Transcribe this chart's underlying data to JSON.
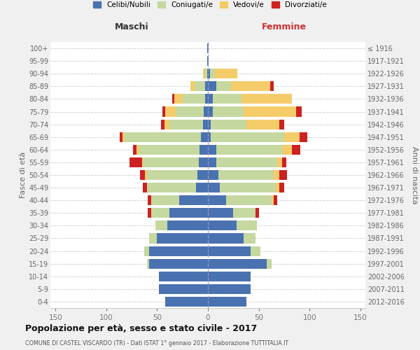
{
  "age_groups": [
    "0-4",
    "5-9",
    "10-14",
    "15-19",
    "20-24",
    "25-29",
    "30-34",
    "35-39",
    "40-44",
    "45-49",
    "50-54",
    "55-59",
    "60-64",
    "65-69",
    "70-74",
    "75-79",
    "80-84",
    "85-89",
    "90-94",
    "95-99",
    "100+"
  ],
  "birth_years": [
    "2012-2016",
    "2007-2011",
    "2002-2006",
    "1997-2001",
    "1992-1996",
    "1987-1991",
    "1982-1986",
    "1977-1981",
    "1972-1976",
    "1967-1971",
    "1962-1966",
    "1957-1961",
    "1952-1956",
    "1947-1951",
    "1942-1946",
    "1937-1941",
    "1932-1936",
    "1927-1931",
    "1922-1926",
    "1917-1921",
    "≤ 1916"
  ],
  "maschi": {
    "celibi": [
      42,
      48,
      48,
      58,
      58,
      50,
      40,
      38,
      28,
      12,
      10,
      9,
      8,
      7,
      5,
      4,
      3,
      3,
      1,
      1,
      1
    ],
    "coniugati": [
      0,
      0,
      0,
      2,
      5,
      8,
      12,
      18,
      28,
      48,
      50,
      55,
      60,
      75,
      33,
      28,
      22,
      10,
      2,
      0,
      0
    ],
    "vedovi": [
      0,
      0,
      0,
      0,
      0,
      0,
      0,
      0,
      0,
      0,
      2,
      1,
      2,
      2,
      5,
      10,
      8,
      4,
      2,
      0,
      0
    ],
    "divorziati": [
      0,
      0,
      0,
      0,
      0,
      0,
      0,
      3,
      3,
      4,
      5,
      12,
      4,
      3,
      3,
      3,
      2,
      0,
      0,
      0,
      0
    ]
  },
  "femmine": {
    "nubili": [
      38,
      42,
      42,
      58,
      42,
      35,
      28,
      25,
      18,
      12,
      10,
      8,
      8,
      3,
      3,
      5,
      5,
      8,
      2,
      1,
      1
    ],
    "coniugate": [
      0,
      0,
      0,
      5,
      10,
      12,
      20,
      22,
      45,
      55,
      55,
      60,
      65,
      72,
      35,
      30,
      28,
      15,
      5,
      0,
      0
    ],
    "vedove": [
      0,
      0,
      0,
      0,
      0,
      0,
      0,
      0,
      2,
      3,
      5,
      5,
      10,
      15,
      32,
      52,
      50,
      38,
      22,
      0,
      0
    ],
    "divorziate": [
      0,
      0,
      0,
      0,
      0,
      0,
      0,
      3,
      3,
      5,
      8,
      4,
      8,
      8,
      5,
      5,
      0,
      4,
      0,
      0,
      0
    ]
  },
  "colors": {
    "celibi": "#4a72b0",
    "coniugati": "#c5d8a0",
    "vedovi": "#f5cc6a",
    "divorziati": "#cc2222"
  },
  "legend_labels": [
    "Celibi/Nubili",
    "Coniugati/e",
    "Vedovi/e",
    "Divorziati/e"
  ],
  "title": "Popolazione per età, sesso e stato civile - 2017",
  "subtitle": "COMUNE DI CASTEL VISCARDO (TR) - Dati ISTAT 1° gennaio 2017 - Elaborazione TUTTITALIA.IT",
  "ylabel_left": "Fasce di età",
  "ylabel_right": "Anni di nascita",
  "xlabel_left": "Maschi",
  "xlabel_right": "Femmine",
  "xlim": 155,
  "bg_color": "#f0f0f0",
  "plot_bg": "#ffffff"
}
